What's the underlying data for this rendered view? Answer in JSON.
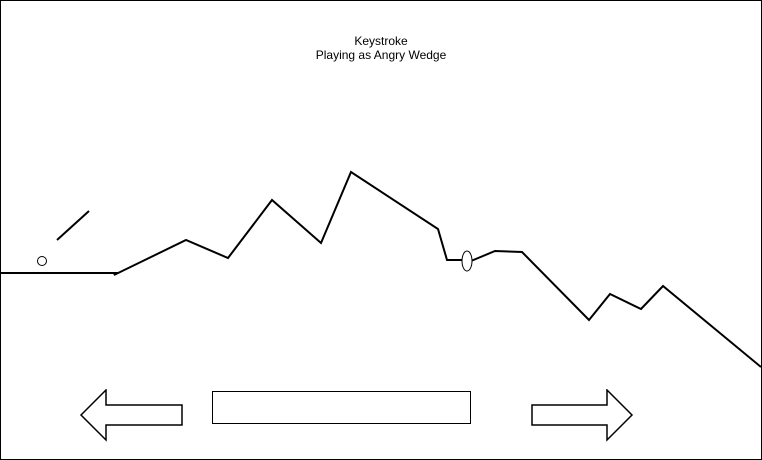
{
  "game": {
    "title": "Keystroke",
    "subtitle": "Playing as Angry Wedge"
  },
  "controls": {
    "left_arrow": "left-arrow-icon",
    "right_arrow": "right-arrow-icon",
    "text_input_value": ""
  },
  "colors": {
    "background": "#ffffff",
    "stroke": "#000000"
  }
}
